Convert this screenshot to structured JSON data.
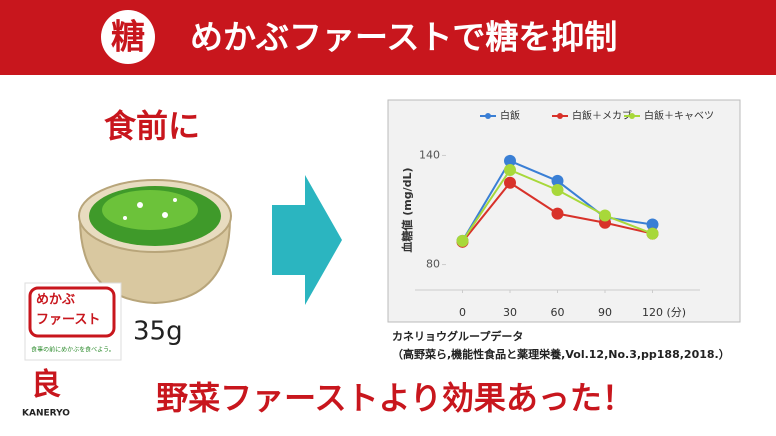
{
  "header": {
    "badge": "糖",
    "title": "めかぶファーストで糖を抑制"
  },
  "left": {
    "caption": "食前に",
    "amount": "35g",
    "logo_line1": "めかぶ",
    "logo_line2": "ファースト",
    "logo_slogan": "食事の前にめかぶを食べよう。",
    "brand_mark": "良",
    "brand_name": "KANERYO"
  },
  "chart_data": {
    "type": "line",
    "y_label": "血糖値 (mg/dL)",
    "x_label": "(分)",
    "x": [
      0,
      30,
      60,
      90,
      120
    ],
    "xlim": [
      -30,
      150
    ],
    "xticks": [
      0,
      30,
      60,
      90,
      120
    ],
    "ylim": [
      66,
      154
    ],
    "yticks": [
      80,
      140
    ],
    "grid": false,
    "legend": "top",
    "series": [
      {
        "name": "白飯",
        "color": "#3a7fd5",
        "values": [
          93,
          137,
          126,
          106,
          102
        ]
      },
      {
        "name": "白飯＋メカブ",
        "color": "#d8322a",
        "values": [
          92.5,
          125,
          108,
          103,
          97
        ]
      },
      {
        "name": "白飯＋キャベツ",
        "color": "#a8d83a",
        "values": [
          93,
          132,
          121,
          107,
          97
        ]
      }
    ]
  },
  "source": {
    "line1": "カネリョウグループデータ",
    "line2": "（高野菜ら,機能性食品と薬理栄養,Vol.12,No.3,pp188,2018.）"
  },
  "conclusion": "野菜ファーストより効果あった！"
}
